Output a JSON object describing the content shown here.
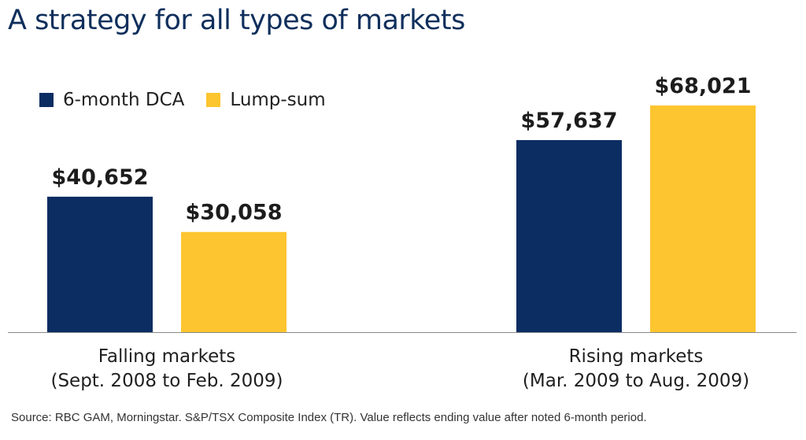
{
  "title": "A strategy for all types of markets",
  "source": "Source: RBC GAM, Morningstar. S&P/TSX Composite Index (TR). Value reflects ending value after noted 6-month period.",
  "colors": {
    "dca": "#0b2d62",
    "lump": "#fdc52f",
    "axis": "#8a8a8a",
    "title": "#0f2f5c"
  },
  "chart_data": {
    "type": "bar",
    "title": "A strategy for all types of markets",
    "categories": [
      [
        "Falling markets",
        "(Sept. 2008 to Feb. 2009)"
      ],
      [
        "Rising markets",
        "(Mar. 2009 to Aug. 2009)"
      ]
    ],
    "series": [
      {
        "name": "6-month DCA",
        "color": "#0b2d62",
        "values": [
          40652,
          57637
        ],
        "labels": [
          "$40,652",
          "$57,637"
        ]
      },
      {
        "name": "Lump-sum",
        "color": "#fdc52f",
        "values": [
          30058,
          68021
        ],
        "labels": [
          "$30,058",
          "$68,021"
        ]
      }
    ],
    "xlabel": "",
    "ylabel": "",
    "ylim": [
      0,
      77000
    ],
    "grid": false,
    "legend_position": "top-left"
  }
}
